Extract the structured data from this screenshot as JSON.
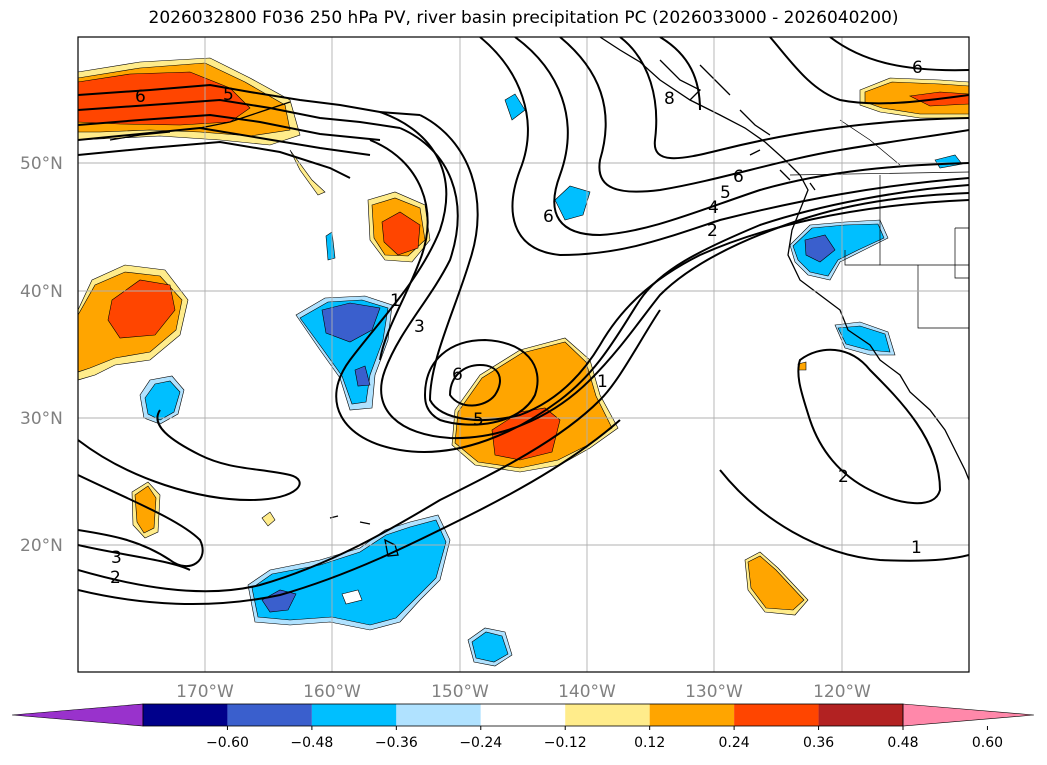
{
  "title": "2026032800 F036 250 hPa PV, river basin precipitation PC (2026033000 - 2026040200)",
  "lat_labels": [
    "50°N",
    "40°N",
    "30°N",
    "20°N"
  ],
  "lon_labels": [
    "170°W",
    "160°W",
    "150°W",
    "140°W",
    "130°W",
    "120°W"
  ],
  "colorbar": {
    "ticks": [
      "−0.60",
      "−0.48",
      "−0.36",
      "−0.24",
      "−0.12",
      "0.12",
      "0.24",
      "0.36",
      "0.48",
      "0.60"
    ],
    "colors": [
      "#9932cc",
      "#00008b",
      "#3a5fcd",
      "#00bfff",
      "#b0e2ff",
      "#ffffff",
      "#ffec8b",
      "#ffa500",
      "#ff4500",
      "#b22222",
      "#ff88aa"
    ]
  },
  "contour_labels": [
    "6",
    "5",
    "6",
    "8",
    "6",
    "6",
    "5",
    "4",
    "2",
    "1",
    "3",
    "6",
    "5",
    "1",
    "2",
    "3",
    "2",
    "1"
  ]
}
